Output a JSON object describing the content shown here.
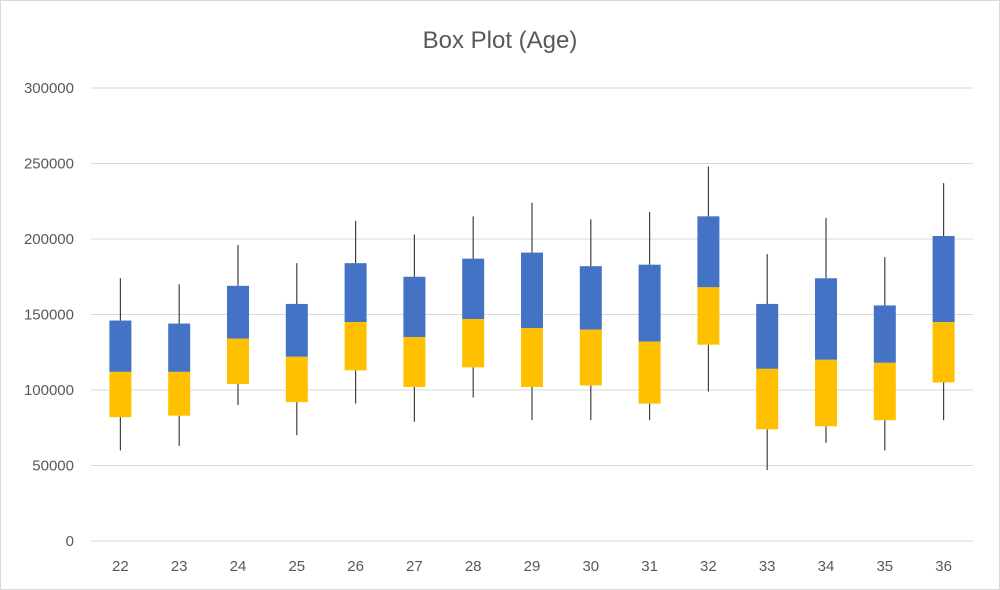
{
  "chart_data": {
    "type": "box",
    "title": "Box Plot (Age)",
    "xlabel": "",
    "ylabel": "",
    "ylim": [
      0,
      300000
    ],
    "yticks": [
      0,
      50000,
      100000,
      150000,
      200000,
      250000,
      300000
    ],
    "grid": true,
    "legend": "none",
    "colors": {
      "lower_box": "#ffc000",
      "upper_box": "#4472c4",
      "whisker": "#404040",
      "grid": "#d9d9d9"
    },
    "categories": [
      "22",
      "23",
      "24",
      "25",
      "26",
      "27",
      "28",
      "29",
      "30",
      "31",
      "32",
      "33",
      "34",
      "35",
      "36"
    ],
    "series": [
      {
        "min": 60000,
        "q1": 82000,
        "median": 112000,
        "q3": 146000,
        "max": 174000
      },
      {
        "min": 63000,
        "q1": 83000,
        "median": 112000,
        "q3": 144000,
        "max": 170000
      },
      {
        "min": 90000,
        "q1": 104000,
        "median": 134000,
        "q3": 169000,
        "max": 196000
      },
      {
        "min": 70000,
        "q1": 92000,
        "median": 122000,
        "q3": 157000,
        "max": 184000
      },
      {
        "min": 91000,
        "q1": 113000,
        "median": 145000,
        "q3": 184000,
        "max": 212000
      },
      {
        "min": 79000,
        "q1": 102000,
        "median": 135000,
        "q3": 175000,
        "max": 203000
      },
      {
        "min": 95000,
        "q1": 115000,
        "median": 147000,
        "q3": 187000,
        "max": 215000
      },
      {
        "min": 80000,
        "q1": 102000,
        "median": 141000,
        "q3": 191000,
        "max": 224000
      },
      {
        "min": 80000,
        "q1": 103000,
        "median": 140000,
        "q3": 182000,
        "max": 213000
      },
      {
        "min": 80000,
        "q1": 91000,
        "median": 132000,
        "q3": 183000,
        "max": 218000
      },
      {
        "min": 99000,
        "q1": 130000,
        "median": 168000,
        "q3": 215000,
        "max": 248000
      },
      {
        "min": 47000,
        "q1": 74000,
        "median": 114000,
        "q3": 157000,
        "max": 190000
      },
      {
        "min": 65000,
        "q1": 76000,
        "median": 120000,
        "q3": 174000,
        "max": 214000
      },
      {
        "min": 60000,
        "q1": 80000,
        "median": 118000,
        "q3": 156000,
        "max": 188000
      },
      {
        "min": 80000,
        "q1": 105000,
        "median": 145000,
        "q3": 202000,
        "max": 237000
      }
    ]
  }
}
